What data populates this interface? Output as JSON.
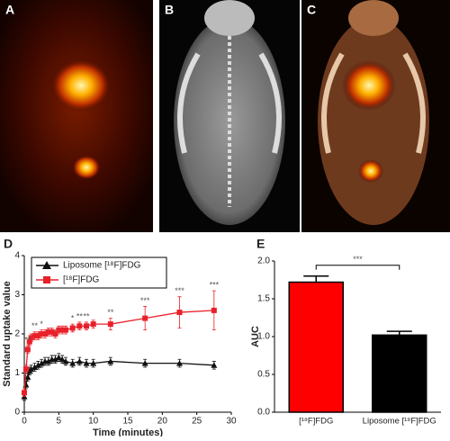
{
  "panel_labels": [
    "A",
    "B",
    "C"
  ],
  "chart_data": [
    {
      "type": "line",
      "panel": "D",
      "ylabel": "Standard uptake value",
      "xlabel": "Time (minutes)",
      "x": [
        0,
        0.25,
        0.5,
        0.75,
        1,
        1.5,
        2,
        2.5,
        3,
        3.5,
        4,
        4.5,
        5,
        5.5,
        6,
        7,
        8,
        9,
        10,
        12.5,
        17.5,
        22.5,
        27.5
      ],
      "series": [
        {
          "name": "Liposome [¹⁸F]FDG",
          "color": "#111111",
          "marker": "triangle",
          "values": [
            0.4,
            0.7,
            0.9,
            1.05,
            1.1,
            1.15,
            1.2,
            1.25,
            1.3,
            1.3,
            1.35,
            1.35,
            1.4,
            1.35,
            1.3,
            1.25,
            1.3,
            1.25,
            1.25,
            1.3,
            1.25,
            1.25,
            1.2
          ],
          "errors": [
            0.1,
            0.1,
            0.1,
            0.1,
            0.1,
            0.1,
            0.1,
            0.1,
            0.1,
            0.1,
            0.1,
            0.1,
            0.1,
            0.1,
            0.1,
            0.1,
            0.1,
            0.1,
            0.1,
            0.1,
            0.1,
            0.1,
            0.1
          ]
        },
        {
          "name": "[¹⁸F]FDG",
          "color": "#e8202a",
          "marker": "square",
          "values": [
            0.5,
            1.1,
            1.6,
            1.8,
            1.9,
            1.95,
            1.95,
            2.0,
            2.0,
            2.05,
            2.05,
            2.0,
            2.1,
            2.1,
            2.1,
            2.15,
            2.2,
            2.2,
            2.25,
            2.25,
            2.4,
            2.55,
            2.6
          ],
          "errors": [
            0.1,
            0.1,
            0.1,
            0.1,
            0.1,
            0.1,
            0.1,
            0.1,
            0.1,
            0.1,
            0.1,
            0.1,
            0.1,
            0.1,
            0.1,
            0.1,
            0.1,
            0.1,
            0.1,
            0.15,
            0.3,
            0.4,
            0.5
          ]
        }
      ],
      "annotations": [
        {
          "x": 0.5,
          "text": "**"
        },
        {
          "x": 1.5,
          "text": "**"
        },
        {
          "x": 2.5,
          "text": "*"
        },
        {
          "x": 7,
          "text": "*"
        },
        {
          "x": 8,
          "text": "**"
        },
        {
          "x": 9,
          "text": "**"
        },
        {
          "x": 12.5,
          "text": "**"
        },
        {
          "x": 17.5,
          "text": "***"
        },
        {
          "x": 22.5,
          "text": "***"
        },
        {
          "x": 27.5,
          "text": "***"
        }
      ],
      "xlim": [
        0,
        30
      ],
      "xticks": [
        0,
        5,
        10,
        15,
        20,
        25,
        30
      ],
      "ylim": [
        0,
        4
      ],
      "yticks": [
        0,
        1,
        2,
        3,
        4
      ],
      "legend": "upper left"
    },
    {
      "type": "bar",
      "panel": "E",
      "ylabel": "AUC",
      "categories": [
        "[¹⁸F]FDG",
        "Liposome [¹⁸F]FDG"
      ],
      "values": [
        1.72,
        1.02
      ],
      "errors": [
        0.08,
        0.05
      ],
      "colors": [
        "#ff0000",
        "#000000"
      ],
      "significance": "***",
      "ylim": [
        0,
        2
      ],
      "yticks": [
        {
          "value": 0,
          "label": "0.0"
        },
        {
          "value": 0.5,
          "label": "0.5"
        },
        {
          "value": 1,
          "label": "1.0"
        },
        {
          "value": 1.5,
          "label": "1.5"
        },
        {
          "value": 2,
          "label": "2.0"
        }
      ]
    }
  ]
}
